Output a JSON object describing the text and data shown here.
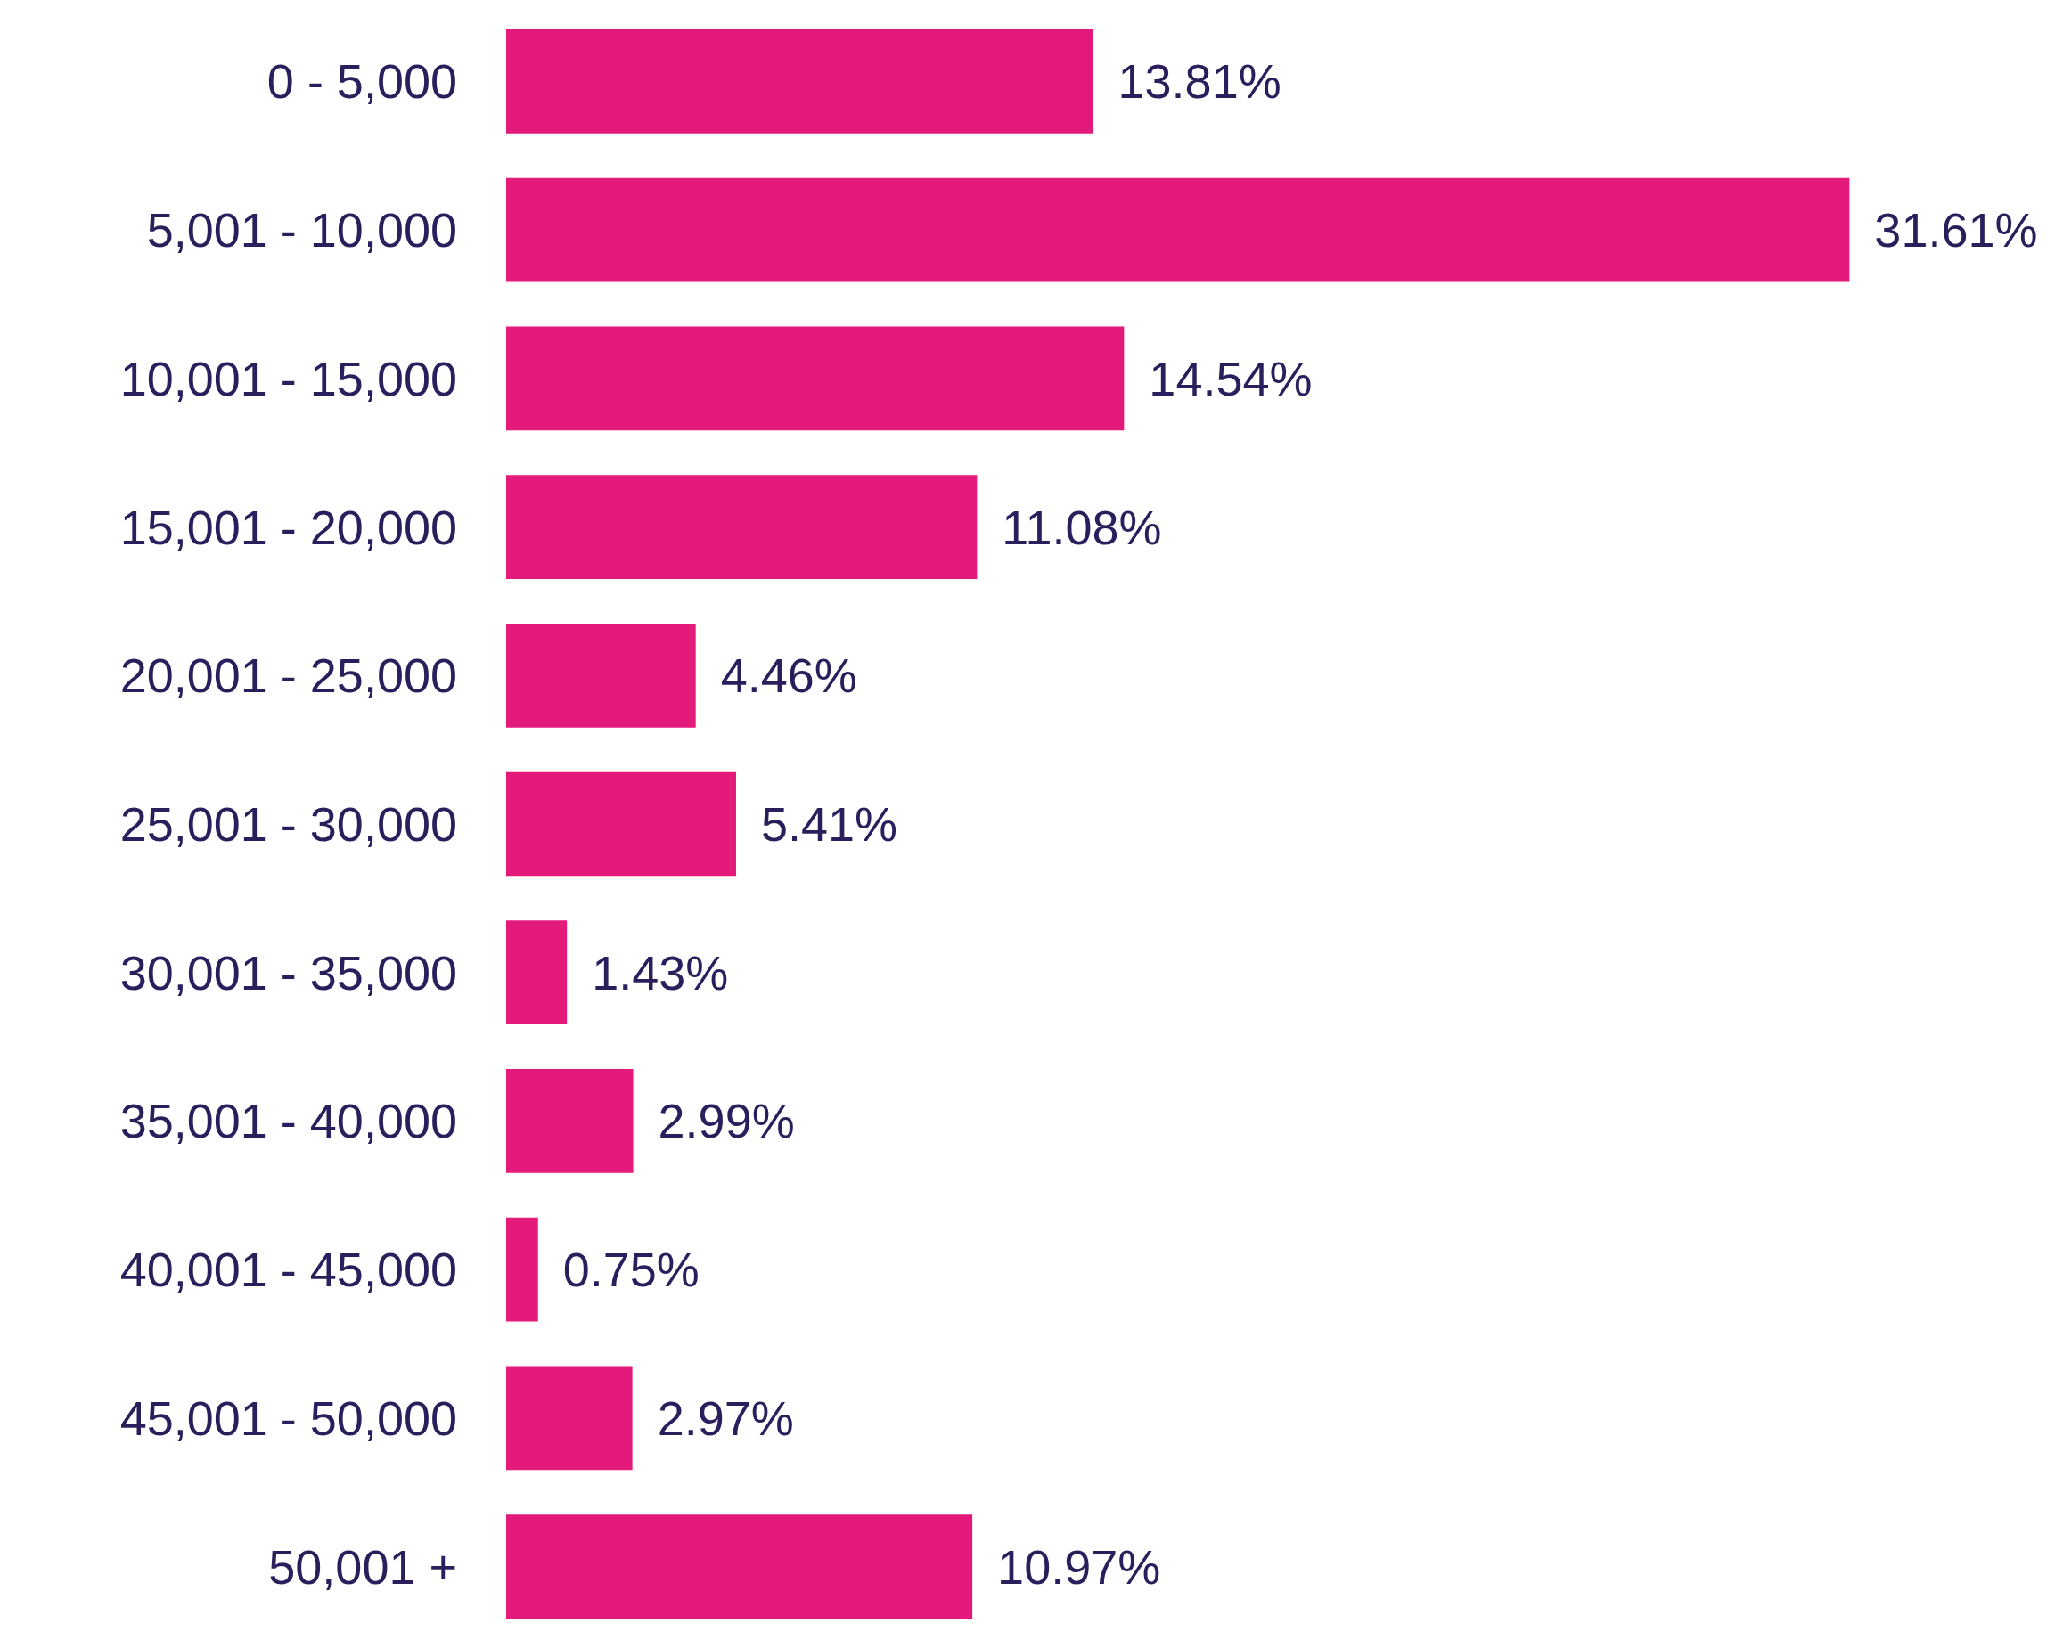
{
  "chart_data": {
    "type": "bar",
    "orientation": "horizontal",
    "categories": [
      "0 - 5,000",
      "5,001 - 10,000",
      "10,001 - 15,000",
      "15,001 - 20,000",
      "20,001 - 25,000",
      "25,001 - 30,000",
      "30,001 - 35,000",
      "35,001 - 40,000",
      "40,001 - 45,000",
      "45,001 - 50,000",
      "50,001 +"
    ],
    "values": [
      13.81,
      31.61,
      14.54,
      11.08,
      4.46,
      5.41,
      1.43,
      2.99,
      0.75,
      2.97,
      10.97
    ],
    "value_labels": [
      "13.81%",
      "31.61%",
      "14.54%",
      "11.08%",
      "4.46%",
      "5.41%",
      "1.43%",
      "2.99%",
      "0.75%",
      "2.97%",
      "10.97%"
    ],
    "color": "#e31a79"
  }
}
